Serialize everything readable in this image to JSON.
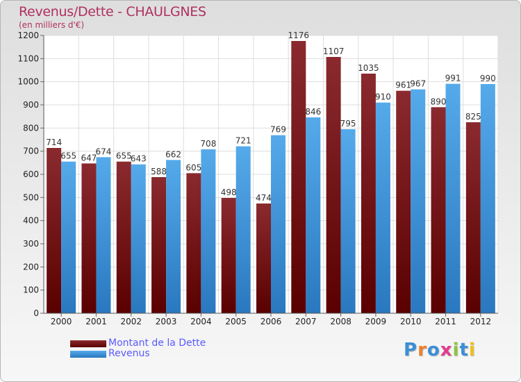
{
  "chart_data": {
    "type": "bar",
    "title": "Revenus/Dette - CHAULGNES",
    "subtitle": "(en milliers d'€)",
    "categories": [
      "2000",
      "2001",
      "2002",
      "2003",
      "2004",
      "2005",
      "2006",
      "2007",
      "2008",
      "2009",
      "2010",
      "2011",
      "2012"
    ],
    "series": [
      {
        "name": "Montant de la Dette",
        "values": [
          714,
          647,
          655,
          588,
          605,
          498,
          474,
          1176,
          1107,
          1035,
          961,
          890,
          825
        ],
        "color": "#7a1e22"
      },
      {
        "name": "Revenus",
        "values": [
          655,
          674,
          643,
          662,
          708,
          721,
          769,
          846,
          795,
          910,
          967,
          991,
          990
        ],
        "color": "#4da3e3"
      }
    ],
    "ylim": [
      0,
      1200
    ],
    "yticks": [
      0,
      100,
      200,
      300,
      400,
      500,
      600,
      700,
      800,
      900,
      1000,
      1100,
      1200
    ],
    "grid": true,
    "legend": "bottom-left"
  },
  "logo": {
    "text": "Proxiti",
    "colors": [
      "#3b8fd6",
      "#f07f2a",
      "#3b8fd6",
      "#e33b8a",
      "#8cc63f",
      "#3b8fd6",
      "#f0c01a"
    ]
  }
}
